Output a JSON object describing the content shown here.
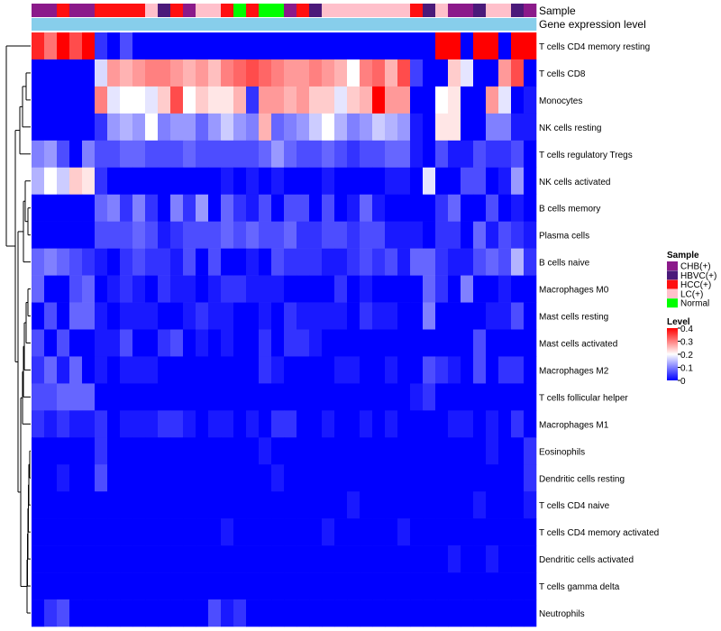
{
  "chart_data": {
    "type": "heatmap",
    "top_annotations": [
      {
        "name": "Sample",
        "label": "Sample",
        "values": [
          "CHB(+)",
          "CHB(+)",
          "HCC(+)",
          "CHB(+)",
          "CHB(+)",
          "HCC(+)",
          "HCC(+)",
          "HCC(+)",
          "HCC(+)",
          "LC(+)",
          "HBVC(+)",
          "HCC(+)",
          "CHB(+)",
          "LC(+)",
          "LC(+)",
          "HCC(+)",
          "Normal",
          "HCC(+)",
          "Normal",
          "Normal",
          "CHB(+)",
          "HCC(+)",
          "HBVC(+)",
          "LC(+)",
          "LC(+)",
          "LC(+)",
          "LC(+)",
          "LC(+)",
          "LC(+)",
          "LC(+)",
          "HCC(+)",
          "HBVC(+)",
          "LC(+)",
          "CHB(+)",
          "CHB(+)",
          "HBVC(+)",
          "LC(+)",
          "LC(+)",
          "HBVC(+)",
          "CHB(+)"
        ]
      },
      {
        "name": "Gene expression level",
        "label": "Gene expression level",
        "values": [
          "Gene expression level",
          "Gene expression level",
          "Gene expression level",
          "Gene expression level",
          "Gene expression level",
          "Gene expression level",
          "Gene expression level",
          "Gene expression level",
          "Gene expression level",
          "Gene expression level",
          "Gene expression level",
          "Gene expression level",
          "Gene expression level",
          "Gene expression level",
          "Gene expression level",
          "Gene expression level",
          "Gene expression level",
          "Gene expression level",
          "Gene expression level",
          "Gene expression level",
          "Gene expression level",
          "Gene expression level",
          "Gene expression level",
          "Gene expression level",
          "Gene expression level",
          "Gene expression level",
          "Gene expression level",
          "Gene expression level",
          "Gene expression level",
          "Gene expression level",
          "Gene expression level",
          "Gene expression level",
          "Gene expression level",
          "Gene expression level",
          "Gene expression level",
          "Gene expression level",
          "Gene expression level",
          "Gene expression level",
          "Gene expression level",
          "Gene expression level"
        ]
      }
    ],
    "rows": [
      {
        "name": "T cells CD4 memory resting",
        "values": [
          0.37,
          0.31,
          0.4,
          0.34,
          0.4,
          0.04,
          0,
          0.06,
          0,
          0,
          0,
          0,
          0,
          0,
          0,
          0,
          0,
          0,
          0,
          0,
          0,
          0,
          0,
          0,
          0,
          0,
          0,
          0,
          0,
          0,
          0,
          0,
          0.4,
          0.4,
          0,
          0.4,
          0.4,
          0,
          0.4,
          0.4
        ]
      },
      {
        "name": "T cells CD8",
        "values": [
          0,
          0,
          0,
          0,
          0,
          0.17,
          0.28,
          0.26,
          0.28,
          0.3,
          0.3,
          0.28,
          0.26,
          0.28,
          0.25,
          0.3,
          0.32,
          0.34,
          0.32,
          0.3,
          0.28,
          0.28,
          0.3,
          0.28,
          0.26,
          0.2,
          0.3,
          0.32,
          0.26,
          0.34,
          0.05,
          0,
          0,
          0.24,
          0.18,
          0,
          0,
          0.28,
          0.34,
          0
        ]
      },
      {
        "name": "Monocytes",
        "values": [
          0,
          0,
          0,
          0,
          0,
          0.3,
          0.18,
          0.2,
          0.2,
          0.18,
          0.24,
          0.34,
          0.2,
          0.24,
          0.22,
          0.22,
          0.26,
          0.04,
          0.28,
          0.28,
          0.26,
          0.28,
          0.24,
          0.24,
          0.18,
          0.24,
          0.26,
          0.4,
          0.28,
          0.28,
          0,
          0,
          0.2,
          0.22,
          0,
          0,
          0.28,
          0.18,
          0,
          0.02
        ]
      },
      {
        "name": "NK cells resting",
        "values": [
          0,
          0,
          0,
          0,
          0,
          0.04,
          0.12,
          0.14,
          0.12,
          0.2,
          0.1,
          0.12,
          0.12,
          0.08,
          0.12,
          0.16,
          0.12,
          0.1,
          0.26,
          0.08,
          0.1,
          0.12,
          0.16,
          0.2,
          0.14,
          0.1,
          0.12,
          0.16,
          0.14,
          0.12,
          0.02,
          0,
          0.22,
          0.22,
          0,
          0,
          0.1,
          0.1,
          0.02,
          0.02
        ]
      },
      {
        "name": "T cells regulatory  Tregs",
        "values": [
          0.1,
          0.12,
          0.06,
          0,
          0.1,
          0.06,
          0.06,
          0.08,
          0.08,
          0.06,
          0.06,
          0.06,
          0.08,
          0.06,
          0.06,
          0.06,
          0.06,
          0.06,
          0.08,
          0.12,
          0.08,
          0.06,
          0.06,
          0.08,
          0.06,
          0.04,
          0.06,
          0.06,
          0.08,
          0.08,
          0.02,
          0,
          0.06,
          0.02,
          0.02,
          0.06,
          0.04,
          0.04,
          0.06,
          0
        ]
      },
      {
        "name": "NK cells activated",
        "values": [
          0.14,
          0.2,
          0.16,
          0.24,
          0.22,
          0.04,
          0,
          0,
          0,
          0,
          0,
          0,
          0,
          0,
          0,
          0.02,
          0,
          0.02,
          0,
          0.02,
          0,
          0,
          0,
          0.02,
          0,
          0,
          0,
          0,
          0.02,
          0.02,
          0,
          0.18,
          0,
          0,
          0.06,
          0.06,
          0,
          0.02,
          0.12,
          0
        ]
      },
      {
        "name": "B cells memory",
        "values": [
          0,
          0,
          0,
          0,
          0,
          0.08,
          0.1,
          0.04,
          0.1,
          0.04,
          0,
          0.1,
          0.04,
          0.12,
          0,
          0.08,
          0.04,
          0.02,
          0.06,
          0,
          0.06,
          0.06,
          0,
          0.06,
          0,
          0.02,
          0.08,
          0.02,
          0,
          0,
          0,
          0,
          0.04,
          0.08,
          0,
          0,
          0.06,
          0,
          0.02,
          0
        ]
      },
      {
        "name": "Plasma cells",
        "values": [
          0,
          0,
          0,
          0,
          0,
          0.06,
          0.06,
          0.06,
          0.08,
          0.06,
          0.02,
          0.04,
          0.06,
          0.06,
          0.06,
          0.08,
          0.06,
          0.08,
          0.06,
          0.06,
          0.08,
          0.04,
          0.04,
          0.06,
          0.06,
          0.04,
          0.06,
          0.06,
          0.02,
          0.02,
          0.02,
          0,
          0.04,
          0.04,
          0,
          0.08,
          0.02,
          0.06,
          0.04,
          0.02
        ]
      },
      {
        "name": "B cells naive",
        "values": [
          0.08,
          0.1,
          0.08,
          0.06,
          0.04,
          0.02,
          0,
          0.04,
          0.06,
          0.04,
          0.04,
          0.02,
          0.06,
          0,
          0.06,
          0,
          0,
          0.02,
          0,
          0.06,
          0.04,
          0.04,
          0.04,
          0.02,
          0.02,
          0.04,
          0.06,
          0.04,
          0.06,
          0.02,
          0.08,
          0.08,
          0.04,
          0.02,
          0.02,
          0.06,
          0.08,
          0.06,
          0.14,
          0.04
        ]
      },
      {
        "name": "Macrophages M0",
        "values": [
          0.08,
          0,
          0,
          0.06,
          0.08,
          0,
          0.02,
          0.04,
          0.02,
          0,
          0.04,
          0.02,
          0.02,
          0,
          0.02,
          0.04,
          0.04,
          0.02,
          0.02,
          0.02,
          0,
          0,
          0,
          0,
          0.04,
          0,
          0.02,
          0,
          0,
          0,
          0,
          0.08,
          0.04,
          0,
          0.1,
          0,
          0,
          0.02,
          0,
          0
        ]
      },
      {
        "name": "Mast cells resting",
        "values": [
          0,
          0.06,
          0,
          0.08,
          0.08,
          0.02,
          0,
          0.02,
          0.02,
          0.02,
          0,
          0,
          0.02,
          0.04,
          0.02,
          0.02,
          0,
          0,
          0.02,
          0,
          0.04,
          0.02,
          0.02,
          0.02,
          0.02,
          0,
          0.04,
          0.02,
          0.02,
          0,
          0,
          0.1,
          0,
          0,
          0,
          0,
          0.02,
          0.02,
          0.06,
          0
        ]
      },
      {
        "name": "Mast cells activated",
        "values": [
          0.06,
          0,
          0.06,
          0,
          0,
          0.02,
          0.02,
          0.06,
          0,
          0,
          0.04,
          0.06,
          0,
          0.02,
          0,
          0.02,
          0,
          0,
          0.04,
          0,
          0.04,
          0.04,
          0.02,
          0,
          0,
          0,
          0,
          0,
          0,
          0,
          0,
          0,
          0,
          0,
          0,
          0.06,
          0,
          0,
          0,
          0
        ]
      },
      {
        "name": "Macrophages M2",
        "values": [
          0.04,
          0.08,
          0.02,
          0.08,
          0,
          0.02,
          0,
          0.02,
          0.02,
          0.02,
          0,
          0,
          0,
          0,
          0,
          0,
          0,
          0,
          0.04,
          0.02,
          0,
          0,
          0,
          0,
          0.02,
          0.02,
          0,
          0,
          0.02,
          0,
          0,
          0.06,
          0.04,
          0.02,
          0,
          0.06,
          0,
          0.04,
          0.04,
          0
        ]
      },
      {
        "name": "T cells follicular helper",
        "values": [
          0.06,
          0.06,
          0.08,
          0.08,
          0.08,
          0,
          0,
          0,
          0,
          0,
          0,
          0,
          0,
          0,
          0,
          0,
          0,
          0,
          0,
          0,
          0,
          0,
          0,
          0,
          0,
          0,
          0,
          0,
          0,
          0,
          0.02,
          0.04,
          0,
          0,
          0,
          0,
          0,
          0,
          0,
          0
        ]
      },
      {
        "name": "Macrophages M1",
        "values": [
          0.04,
          0.02,
          0.04,
          0.02,
          0.02,
          0.04,
          0,
          0.02,
          0.02,
          0.02,
          0.04,
          0.04,
          0.02,
          0,
          0.02,
          0.02,
          0,
          0.02,
          0,
          0.04,
          0.04,
          0,
          0,
          0.02,
          0,
          0,
          0.02,
          0,
          0.02,
          0,
          0,
          0,
          0,
          0.02,
          0.02,
          0,
          0.02,
          0,
          0.04,
          0
        ]
      },
      {
        "name": "Eosinophils",
        "values": [
          0,
          0,
          0,
          0,
          0,
          0.04,
          0,
          0,
          0,
          0,
          0,
          0,
          0,
          0,
          0,
          0,
          0,
          0,
          0.02,
          0,
          0,
          0,
          0,
          0,
          0,
          0,
          0,
          0,
          0,
          0,
          0,
          0,
          0,
          0,
          0,
          0,
          0.02,
          0,
          0,
          0.04
        ]
      },
      {
        "name": "Dendritic cells resting",
        "values": [
          0,
          0,
          0.02,
          0,
          0,
          0.06,
          0,
          0,
          0,
          0,
          0,
          0,
          0,
          0,
          0,
          0,
          0,
          0,
          0,
          0.02,
          0,
          0,
          0,
          0,
          0,
          0,
          0,
          0,
          0,
          0,
          0,
          0,
          0,
          0,
          0,
          0,
          0,
          0,
          0,
          0.04
        ]
      },
      {
        "name": "T cells CD4 naive",
        "values": [
          0,
          0,
          0,
          0,
          0,
          0,
          0,
          0,
          0,
          0,
          0,
          0,
          0,
          0,
          0,
          0,
          0,
          0,
          0,
          0,
          0,
          0,
          0,
          0,
          0,
          0.02,
          0,
          0,
          0,
          0,
          0,
          0,
          0,
          0,
          0,
          0.02,
          0,
          0,
          0,
          0.02
        ]
      },
      {
        "name": "T cells CD4 memory activated",
        "values": [
          0,
          0,
          0,
          0,
          0,
          0,
          0,
          0,
          0,
          0,
          0,
          0,
          0,
          0,
          0,
          0.02,
          0,
          0,
          0,
          0,
          0,
          0,
          0,
          0.02,
          0,
          0,
          0,
          0,
          0,
          0.02,
          0,
          0,
          0,
          0,
          0,
          0,
          0,
          0,
          0,
          0
        ]
      },
      {
        "name": "Dendritic cells activated",
        "values": [
          0,
          0,
          0,
          0,
          0,
          0,
          0,
          0,
          0,
          0,
          0,
          0,
          0,
          0,
          0,
          0,
          0,
          0,
          0,
          0,
          0,
          0,
          0,
          0,
          0,
          0,
          0,
          0,
          0,
          0,
          0,
          0,
          0,
          0.02,
          0,
          0,
          0.02,
          0,
          0,
          0
        ]
      },
      {
        "name": "T cells gamma delta",
        "values": [
          0,
          0,
          0,
          0,
          0,
          0,
          0,
          0,
          0,
          0,
          0,
          0,
          0,
          0,
          0,
          0,
          0,
          0,
          0,
          0,
          0,
          0,
          0,
          0,
          0,
          0,
          0,
          0,
          0,
          0,
          0,
          0,
          0,
          0,
          0,
          0,
          0,
          0,
          0,
          0
        ]
      },
      {
        "name": "Neutrophils",
        "values": [
          0,
          0.04,
          0.06,
          0,
          0,
          0,
          0,
          0,
          0,
          0,
          0,
          0,
          0,
          0,
          0.06,
          0.02,
          0.04,
          0,
          0,
          0,
          0,
          0,
          0,
          0,
          0,
          0,
          0,
          0,
          0,
          0,
          0,
          0,
          0,
          0,
          0,
          0,
          0,
          0,
          0,
          0
        ]
      }
    ],
    "color_scale": {
      "min": 0,
      "max": 0.4,
      "low": "#0000ff",
      "mid": "#ffffff",
      "high": "#ff0000",
      "mid_value": 0.2
    },
    "sample_colors": {
      "CHB(+)": "#8b1a8a",
      "HBVC(+)": "#4b1a7a",
      "HCC(+)": "#ff1010",
      "LC(+)": "#ffc0cb",
      "Normal": "#00ff00"
    },
    "gene_expression_color": "#87ceeb",
    "legend_sample": {
      "title": "Sample",
      "items": [
        "CHB(+)",
        "HBVC(+)",
        "HCC(+)",
        "LC(+)",
        "Normal"
      ]
    },
    "legend_level": {
      "title": "Level",
      "ticks": [
        "0.4",
        "0.3",
        "0.2",
        "0.1",
        "0"
      ]
    },
    "dendrogram": "row"
  }
}
